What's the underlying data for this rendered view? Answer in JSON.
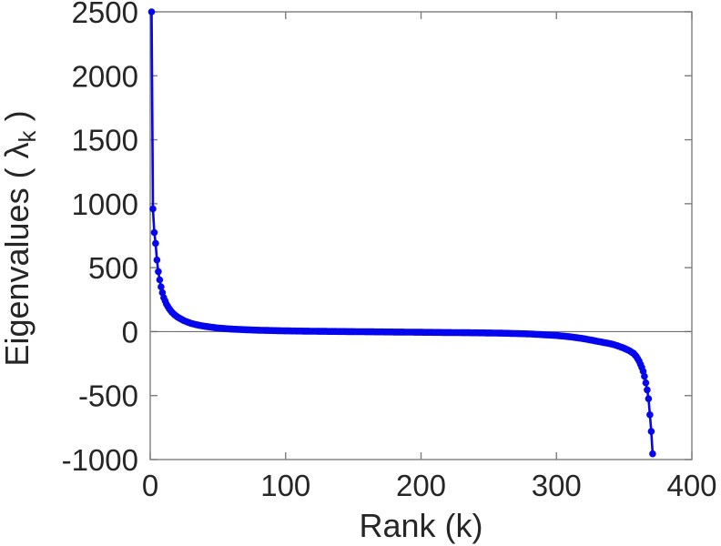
{
  "figure": {
    "background": "#ffffff"
  },
  "colors": {
    "curve": "#0505ee",
    "axis_spine": "#7d7d7d",
    "zero_line": "#6e6e6e",
    "tick_label": "#262626"
  },
  "chart_data": {
    "type": "line",
    "title": "",
    "xlabel": "Rank (k)",
    "ylabel": "Eigenvalues ( λk )",
    "ylabel_parts": {
      "prefix": "Eigenvalues ( ",
      "symbol": "λ",
      "subscript": "k",
      "suffix": " )"
    },
    "xlim": [
      0,
      400
    ],
    "ylim": [
      -1000,
      2500
    ],
    "xticks": [
      0,
      100,
      200,
      300,
      400
    ],
    "yticks": [
      -1000,
      -500,
      0,
      500,
      1000,
      1500,
      2000,
      2500
    ],
    "grid": false,
    "box": true,
    "zero_line": true,
    "legend": null,
    "series": [
      {
        "name": "eigenvalues",
        "color": "#0505ee",
        "marker": "circle",
        "marker_radius": 3.8,
        "line_width": 2.6,
        "n_points": 371,
        "anchors": {
          "k": [
            1,
            2,
            3,
            4,
            5,
            6,
            7,
            8,
            9,
            10,
            12,
            14,
            16,
            18,
            20,
            25,
            30,
            35,
            40,
            50,
            60,
            70,
            80,
            100,
            120,
            140,
            160,
            180,
            200,
            220,
            240,
            260,
            280,
            300,
            310,
            320,
            330,
            340,
            345,
            350,
            354,
            357,
            359,
            361,
            363,
            364,
            365,
            366,
            367,
            368,
            369,
            370,
            371
          ],
          "lambda": [
            2500,
            960,
            775,
            690,
            560,
            470,
            405,
            350,
            305,
            265,
            215,
            180,
            152,
            132,
            115,
            85,
            65,
            52,
            42,
            28,
            20,
            15,
            11,
            6,
            3,
            1,
            -1,
            -3,
            -5,
            -7,
            -9,
            -12,
            -18,
            -30,
            -40,
            -55,
            -75,
            -95,
            -110,
            -130,
            -150,
            -170,
            -195,
            -230,
            -280,
            -310,
            -350,
            -400,
            -455,
            -525,
            -650,
            -780,
            -955
          ]
        }
      }
    ]
  }
}
